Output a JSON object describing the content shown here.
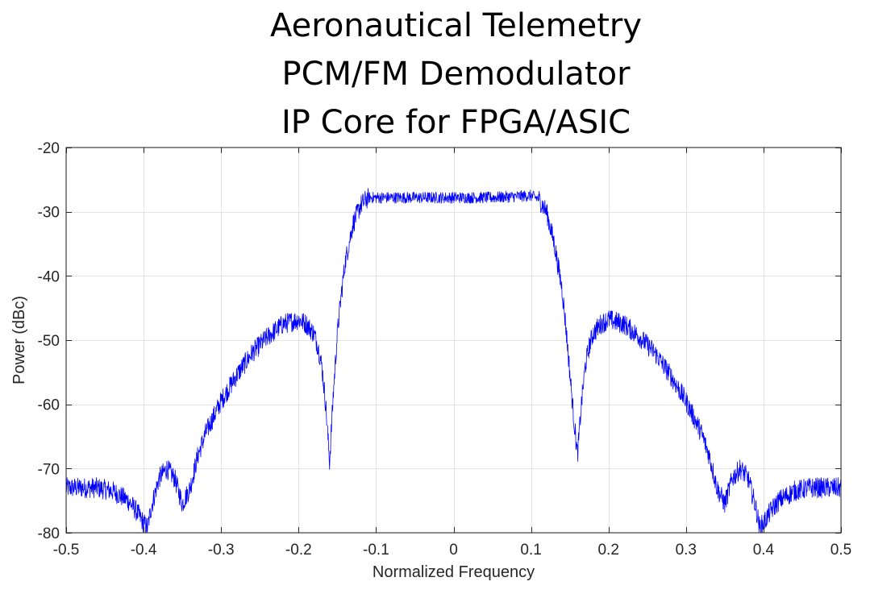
{
  "chart_data": {
    "type": "line",
    "title_lines": [
      "Aeronautical Telemetry",
      "PCM/FM Demodulator",
      "IP Core for FPGA/ASIC"
    ],
    "xlabel": "Normalized Frequency",
    "ylabel": "Power (dBc)",
    "xlim": [
      -0.5,
      0.5
    ],
    "ylim": [
      -80,
      -20
    ],
    "xticks": [
      -0.5,
      -0.4,
      -0.3,
      -0.2,
      -0.1,
      0,
      0.1,
      0.2,
      0.3,
      0.4,
      0.5
    ],
    "xtick_labels": [
      "-0.5",
      "-0.4",
      "-0.3",
      "-0.2",
      "-0.1",
      "0",
      "0.1",
      "0.2",
      "0.3",
      "0.4",
      "0.5"
    ],
    "yticks": [
      -80,
      -70,
      -60,
      -50,
      -40,
      -30,
      -20
    ],
    "ytick_labels": [
      "-80",
      "-70",
      "-60",
      "-50",
      "-40",
      "-30",
      "-20"
    ],
    "grid": true,
    "legend": "none",
    "series": [
      {
        "color": "#0000ff",
        "x": [
          -0.5,
          -0.48,
          -0.46,
          -0.44,
          -0.42,
          -0.41,
          -0.4,
          -0.395,
          -0.39,
          -0.38,
          -0.37,
          -0.36,
          -0.35,
          -0.34,
          -0.33,
          -0.32,
          -0.3,
          -0.28,
          -0.26,
          -0.24,
          -0.22,
          -0.2,
          -0.19,
          -0.18,
          -0.175,
          -0.17,
          -0.165,
          -0.16,
          -0.155,
          -0.15,
          -0.145,
          -0.14,
          -0.13,
          -0.12,
          -0.11,
          -0.1,
          -0.05,
          0,
          0.05,
          0.1,
          0.11,
          0.12,
          0.13,
          0.14,
          0.145,
          0.15,
          0.155,
          0.16,
          0.165,
          0.17,
          0.175,
          0.18,
          0.19,
          0.2,
          0.22,
          0.24,
          0.26,
          0.28,
          0.3,
          0.32,
          0.33,
          0.34,
          0.35,
          0.36,
          0.37,
          0.38,
          0.39,
          0.395,
          0.4,
          0.41,
          0.42,
          0.44,
          0.46,
          0.48,
          0.5
        ],
        "y": [
          -73,
          -73,
          -73,
          -73.5,
          -75,
          -76.5,
          -78.5,
          -79.2,
          -76,
          -71.5,
          -70,
          -71.5,
          -75.5,
          -73,
          -68,
          -64.5,
          -59.5,
          -55.5,
          -52,
          -49.5,
          -47.5,
          -46.8,
          -47.5,
          -49,
          -51,
          -54,
          -60,
          -69,
          -58,
          -49,
          -43,
          -38,
          -32,
          -29,
          -27.8,
          -27.8,
          -27.8,
          -27.8,
          -27.8,
          -27.5,
          -28,
          -30,
          -35,
          -42,
          -48,
          -55,
          -62,
          -68,
          -60,
          -54,
          -51,
          -49,
          -47.5,
          -46.8,
          -47.5,
          -49.5,
          -52,
          -55.5,
          -59.5,
          -64.5,
          -68,
          -73,
          -75.5,
          -71.5,
          -70,
          -71.5,
          -76,
          -79.2,
          -78.5,
          -76.5,
          -75,
          -73.5,
          -73,
          -73,
          -73
        ]
      }
    ]
  }
}
